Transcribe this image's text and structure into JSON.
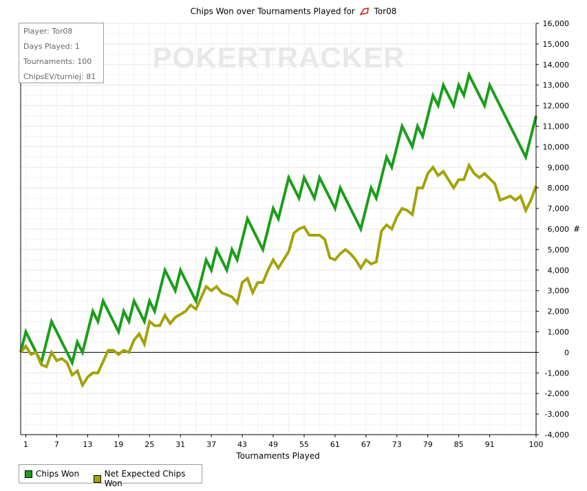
{
  "chart_data": {
    "type": "line",
    "title": "Chips Won over Tournaments Played for",
    "player_name": "Tor08",
    "xlabel": "Tournaments Played",
    "ylabel": "#",
    "watermark": "POKERTRACKER",
    "x_ticks": [
      1,
      7,
      13,
      19,
      25,
      31,
      37,
      43,
      49,
      55,
      61,
      67,
      73,
      79,
      85,
      91,
      100
    ],
    "y_ticks": [
      -4000,
      -3000,
      -2000,
      -1000,
      0,
      1000,
      2000,
      3000,
      4000,
      5000,
      6000,
      7000,
      8000,
      9000,
      10000,
      11000,
      12000,
      13000,
      14000,
      15000,
      16000
    ],
    "y_tick_labels": [
      "-4,000",
      "-3,000",
      "-2,000",
      "-1,000",
      "0",
      "1,000",
      "2,000",
      "3,000",
      "4,000",
      "5,000",
      "6,000",
      "7,000",
      "8,000",
      "9,000",
      "10,000",
      "11,000",
      "12,000",
      "13,000",
      "14,000",
      "15,000",
      "16,000"
    ],
    "xlim": [
      0,
      100
    ],
    "ylim": [
      -4000,
      16000
    ],
    "grid": true,
    "legend_placement": "bottom-left",
    "series": [
      {
        "name": "Chips Won",
        "color": "#1a9e1a",
        "points": [
          [
            0,
            0
          ],
          [
            1,
            1000
          ],
          [
            4,
            -500
          ],
          [
            6,
            1500
          ],
          [
            10,
            -500
          ],
          [
            11,
            500
          ],
          [
            12,
            0
          ],
          [
            14,
            2000
          ],
          [
            15,
            1500
          ],
          [
            16,
            2500
          ],
          [
            19,
            1000
          ],
          [
            20,
            2000
          ],
          [
            21,
            1500
          ],
          [
            22,
            2500
          ],
          [
            24,
            1500
          ],
          [
            25,
            2500
          ],
          [
            26,
            2000
          ],
          [
            28,
            4000
          ],
          [
            30,
            3000
          ],
          [
            31,
            4000
          ],
          [
            34,
            2500
          ],
          [
            36,
            4500
          ],
          [
            37,
            4000
          ],
          [
            38,
            5000
          ],
          [
            40,
            4000
          ],
          [
            41,
            5000
          ],
          [
            42,
            4500
          ],
          [
            44,
            6500
          ],
          [
            47,
            5000
          ],
          [
            49,
            7000
          ],
          [
            50,
            6500
          ],
          [
            52,
            8500
          ],
          [
            54,
            7500
          ],
          [
            55,
            8500
          ],
          [
            57,
            7500
          ],
          [
            58,
            8500
          ],
          [
            61,
            7000
          ],
          [
            62,
            8000
          ],
          [
            66,
            6000
          ],
          [
            68,
            8000
          ],
          [
            69,
            7500
          ],
          [
            71,
            9500
          ],
          [
            72,
            9000
          ],
          [
            74,
            11000
          ],
          [
            76,
            10000
          ],
          [
            77,
            11000
          ],
          [
            78,
            10500
          ],
          [
            80,
            12500
          ],
          [
            81,
            12000
          ],
          [
            82,
            13000
          ],
          [
            84,
            12000
          ],
          [
            85,
            13000
          ],
          [
            86,
            12500
          ],
          [
            87,
            13500
          ],
          [
            90,
            12000
          ],
          [
            91,
            13000
          ],
          [
            98,
            9500
          ],
          [
            100,
            11500
          ]
        ]
      },
      {
        "name": "Net Expected Chips Won",
        "color": "#a3a30c",
        "points": [
          [
            0,
            0
          ],
          [
            1,
            300
          ],
          [
            2,
            -100
          ],
          [
            3,
            0
          ],
          [
            4,
            -600
          ],
          [
            5,
            -700
          ],
          [
            6,
            0
          ],
          [
            7,
            -400
          ],
          [
            8,
            -300
          ],
          [
            9,
            -500
          ],
          [
            10,
            -1100
          ],
          [
            11,
            -900
          ],
          [
            12,
            -1600
          ],
          [
            13,
            -1200
          ],
          [
            14,
            -1000
          ],
          [
            15,
            -1000
          ],
          [
            17,
            100
          ],
          [
            18,
            100
          ],
          [
            19,
            -100
          ],
          [
            20,
            100
          ],
          [
            21,
            0
          ],
          [
            22,
            600
          ],
          [
            23,
            900
          ],
          [
            24,
            400
          ],
          [
            25,
            1500
          ],
          [
            26,
            1300
          ],
          [
            27,
            1300
          ],
          [
            28,
            1800
          ],
          [
            29,
            1400
          ],
          [
            30,
            1700
          ],
          [
            32,
            2000
          ],
          [
            33,
            2300
          ],
          [
            34,
            2100
          ],
          [
            36,
            3200
          ],
          [
            37,
            3000
          ],
          [
            38,
            3200
          ],
          [
            39,
            2900
          ],
          [
            40,
            2800
          ],
          [
            41,
            2700
          ],
          [
            42,
            2400
          ],
          [
            43,
            3400
          ],
          [
            44,
            3600
          ],
          [
            45,
            2900
          ],
          [
            46,
            3400
          ],
          [
            47,
            3400
          ],
          [
            48,
            4000
          ],
          [
            49,
            4500
          ],
          [
            50,
            4100
          ],
          [
            52,
            4900
          ],
          [
            53,
            5800
          ],
          [
            54,
            6000
          ],
          [
            55,
            6100
          ],
          [
            56,
            5700
          ],
          [
            57,
            5700
          ],
          [
            58,
            5700
          ],
          [
            59,
            5500
          ],
          [
            60,
            4600
          ],
          [
            61,
            4500
          ],
          [
            62,
            4800
          ],
          [
            63,
            5000
          ],
          [
            64,
            4800
          ],
          [
            65,
            4500
          ],
          [
            66,
            4100
          ],
          [
            67,
            4500
          ],
          [
            68,
            4300
          ],
          [
            69,
            4400
          ],
          [
            70,
            5900
          ],
          [
            71,
            6200
          ],
          [
            72,
            6000
          ],
          [
            73,
            6600
          ],
          [
            74,
            7000
          ],
          [
            75,
            6900
          ],
          [
            76,
            6700
          ],
          [
            77,
            8000
          ],
          [
            78,
            8000
          ],
          [
            79,
            8700
          ],
          [
            80,
            9000
          ],
          [
            81,
            8600
          ],
          [
            82,
            8800
          ],
          [
            84,
            8000
          ],
          [
            85,
            8400
          ],
          [
            86,
            8400
          ],
          [
            87,
            9100
          ],
          [
            88,
            8700
          ],
          [
            89,
            8500
          ],
          [
            90,
            8700
          ],
          [
            92,
            8200
          ],
          [
            93,
            7400
          ],
          [
            94,
            7500
          ],
          [
            95,
            7600
          ],
          [
            96,
            7400
          ],
          [
            97,
            7600
          ],
          [
            98,
            6900
          ],
          [
            99,
            7400
          ],
          [
            100,
            8100
          ]
        ]
      }
    ]
  },
  "stats": {
    "player": "Player: Tor08",
    "days_played": "Days Played: 1",
    "tournaments": "Tournaments: 100",
    "chips_ev": "ChipsEV/turniej: 81"
  },
  "legend": {
    "chips_won": "Chips Won",
    "net_expected": "Net Expected Chips Won"
  }
}
